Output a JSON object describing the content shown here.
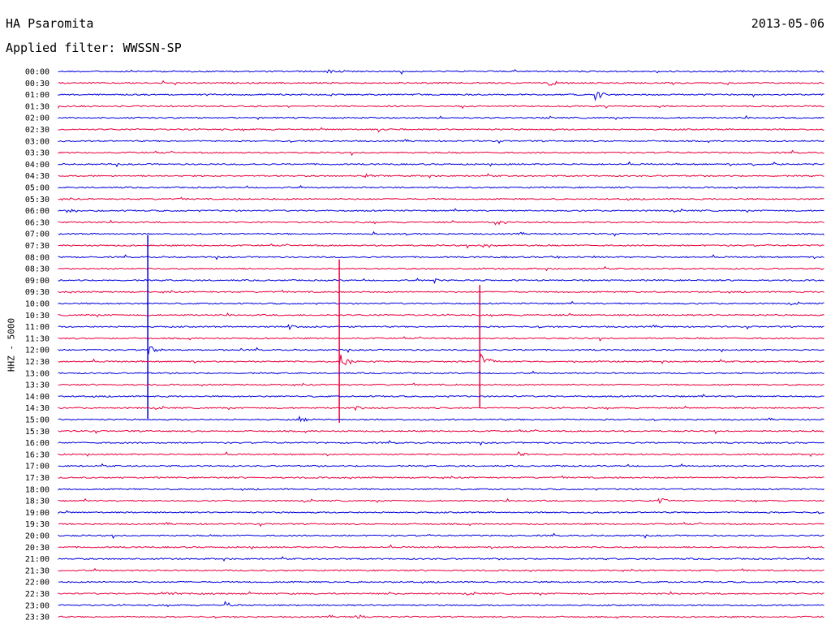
{
  "header": {
    "station": "HA Psaromita",
    "filter": "Applied filter: WWSSN-SP",
    "date": "2013-05-06",
    "channel": "HHZ - 5000"
  },
  "colors": {
    "traceA": "#0000dd",
    "traceB": "#e8003c"
  },
  "chart_data": {
    "type": "helicorder",
    "title": "HA Psaromita",
    "subtitle": "Applied filter: WWSSN-SP",
    "date": "2013-05-06",
    "ylabel": "HHZ - 5000",
    "row_labels": [
      "00:00",
      "00:30",
      "01:00",
      "01:30",
      "02:00",
      "02:30",
      "03:00",
      "03:30",
      "04:00",
      "04:30",
      "05:00",
      "05:30",
      "06:00",
      "06:30",
      "07:00",
      "07:30",
      "08:00",
      "08:30",
      "09:00",
      "09:30",
      "10:00",
      "10:30",
      "11:00",
      "11:30",
      "12:00",
      "12:30",
      "13:00",
      "13:30",
      "14:00",
      "14:30",
      "15:00",
      "15:30",
      "16:00",
      "16:30",
      "17:00",
      "17:30",
      "18:00",
      "18:30",
      "19:00",
      "19:30",
      "20:00",
      "20:30",
      "21:00",
      "21:30",
      "22:00",
      "22:30",
      "23:00",
      "23:30"
    ],
    "row_minutes": 30,
    "trace_colors": [
      "blue",
      "red"
    ],
    "events": [
      {
        "row": "00:00",
        "minute": 10.5,
        "amp": 0.7
      },
      {
        "row": "00:30",
        "minute": 19.2,
        "amp": 1.4
      },
      {
        "row": "01:00",
        "minute": 21.0,
        "amp": 1.6
      },
      {
        "row": "02:30",
        "minute": 12.5,
        "amp": 0.9
      },
      {
        "row": "04:00",
        "minute": 27.2,
        "amp": 0.4
      },
      {
        "row": "04:30",
        "minute": 12.0,
        "amp": 0.9
      },
      {
        "row": "06:00",
        "minute": 0.3,
        "amp": 0.8
      },
      {
        "row": "06:30",
        "minute": 17.1,
        "amp": 1.4
      },
      {
        "row": "07:00",
        "minute": 12.3,
        "amp": 0.6
      },
      {
        "row": "07:30",
        "minute": 16.6,
        "amp": 1.1
      },
      {
        "row": "08:00",
        "minute": 19.3,
        "amp": 0.7
      },
      {
        "row": "09:00",
        "minute": 14.7,
        "amp": 0.8
      },
      {
        "row": "11:00",
        "minute": 9.0,
        "amp": 1.0
      },
      {
        "row": "12:00",
        "minute": 3.5,
        "amp": 9.0
      },
      {
        "row": "12:30",
        "minute": 11.0,
        "amp": 8.0
      },
      {
        "row": "12:30",
        "minute": 16.5,
        "amp": 6.0
      },
      {
        "row": "14:30",
        "minute": 11.6,
        "amp": 1.0
      },
      {
        "row": "15:00",
        "minute": 9.4,
        "amp": 1.2
      },
      {
        "row": "16:30",
        "minute": 18.0,
        "amp": 0.9
      },
      {
        "row": "18:30",
        "minute": 23.5,
        "amp": 1.0
      },
      {
        "row": "22:30",
        "minute": 4.0,
        "amp": 1.5
      },
      {
        "row": "23:00",
        "minute": 6.5,
        "amp": 1.2
      },
      {
        "row": "23:30",
        "minute": 11.6,
        "amp": 1.1
      }
    ],
    "grid": false
  }
}
